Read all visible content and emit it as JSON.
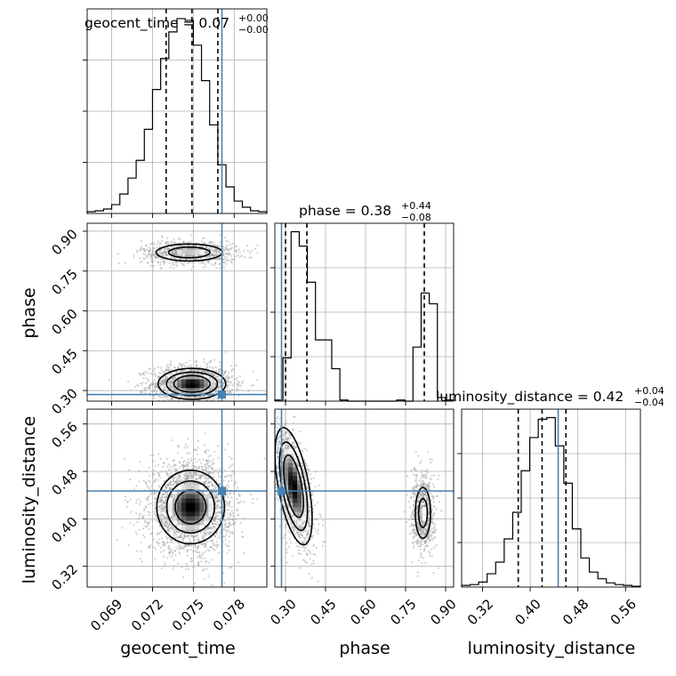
{
  "chart_data": {
    "type": "corner",
    "parameters": [
      "geocent_time",
      "phase",
      "luminosity_distance"
    ],
    "truths": {
      "geocent_time": 0.0771,
      "phase": 0.285,
      "luminosity_distance": 0.447
    },
    "ranges": {
      "geocent_time": [
        0.0672,
        0.0804
      ],
      "phase": [
        0.26,
        0.93
      ],
      "luminosity_distance": [
        0.285,
        0.585
      ]
    },
    "ticks": {
      "geocent_time": [
        "0.069",
        "0.072",
        "0.075",
        "0.078"
      ],
      "phase": [
        "0.30",
        "0.45",
        "0.60",
        "0.75",
        "0.90"
      ],
      "luminosity_distance": [
        "0.32",
        "0.40",
        "0.48",
        "0.56"
      ]
    },
    "titles": {
      "geocent_time": {
        "label": "geocent_time = 0.07",
        "plus": "+0.00",
        "minus": "−0.00"
      },
      "phase": {
        "label": "phase = 0.38",
        "plus": "+0.44",
        "minus": "−0.08"
      },
      "luminosity_distance": {
        "label": "luminosity_distance = 0.42",
        "plus": "+0.04",
        "minus": "−0.04"
      }
    },
    "quantiles": {
      "geocent_time": [
        0.073,
        0.0749,
        0.0768
      ],
      "phase": [
        0.3,
        0.38,
        0.82
      ],
      "luminosity_distance": [
        0.38,
        0.42,
        0.46
      ]
    },
    "histograms": {
      "geocent_time": {
        "edges": [
          0.0672,
          0.0804
        ],
        "counts": [
          2,
          3,
          5,
          10,
          22,
          40,
          60,
          95,
          140,
          175,
          205,
          220,
          218,
          190,
          150,
          100,
          55,
          30,
          14,
          7,
          3,
          2
        ]
      },
      "phase": {
        "edges": [
          0.26,
          0.93
        ],
        "counts": [
          3,
          120,
          470,
          430,
          330,
          170,
          170,
          90,
          3,
          0,
          0,
          0,
          0,
          0,
          0,
          3,
          0,
          150,
          300,
          270,
          10,
          3
        ]
      },
      "luminosity_distance": {
        "edges": [
          0.285,
          0.585
        ],
        "counts": [
          2,
          3,
          6,
          16,
          30,
          58,
          90,
          140,
          180,
          202,
          204,
          170,
          125,
          70,
          35,
          18,
          10,
          5,
          3,
          2,
          1
        ]
      }
    }
  },
  "colors": {
    "truth": "#4682b4",
    "contour": "#000000",
    "points": "#9a9a9a"
  }
}
